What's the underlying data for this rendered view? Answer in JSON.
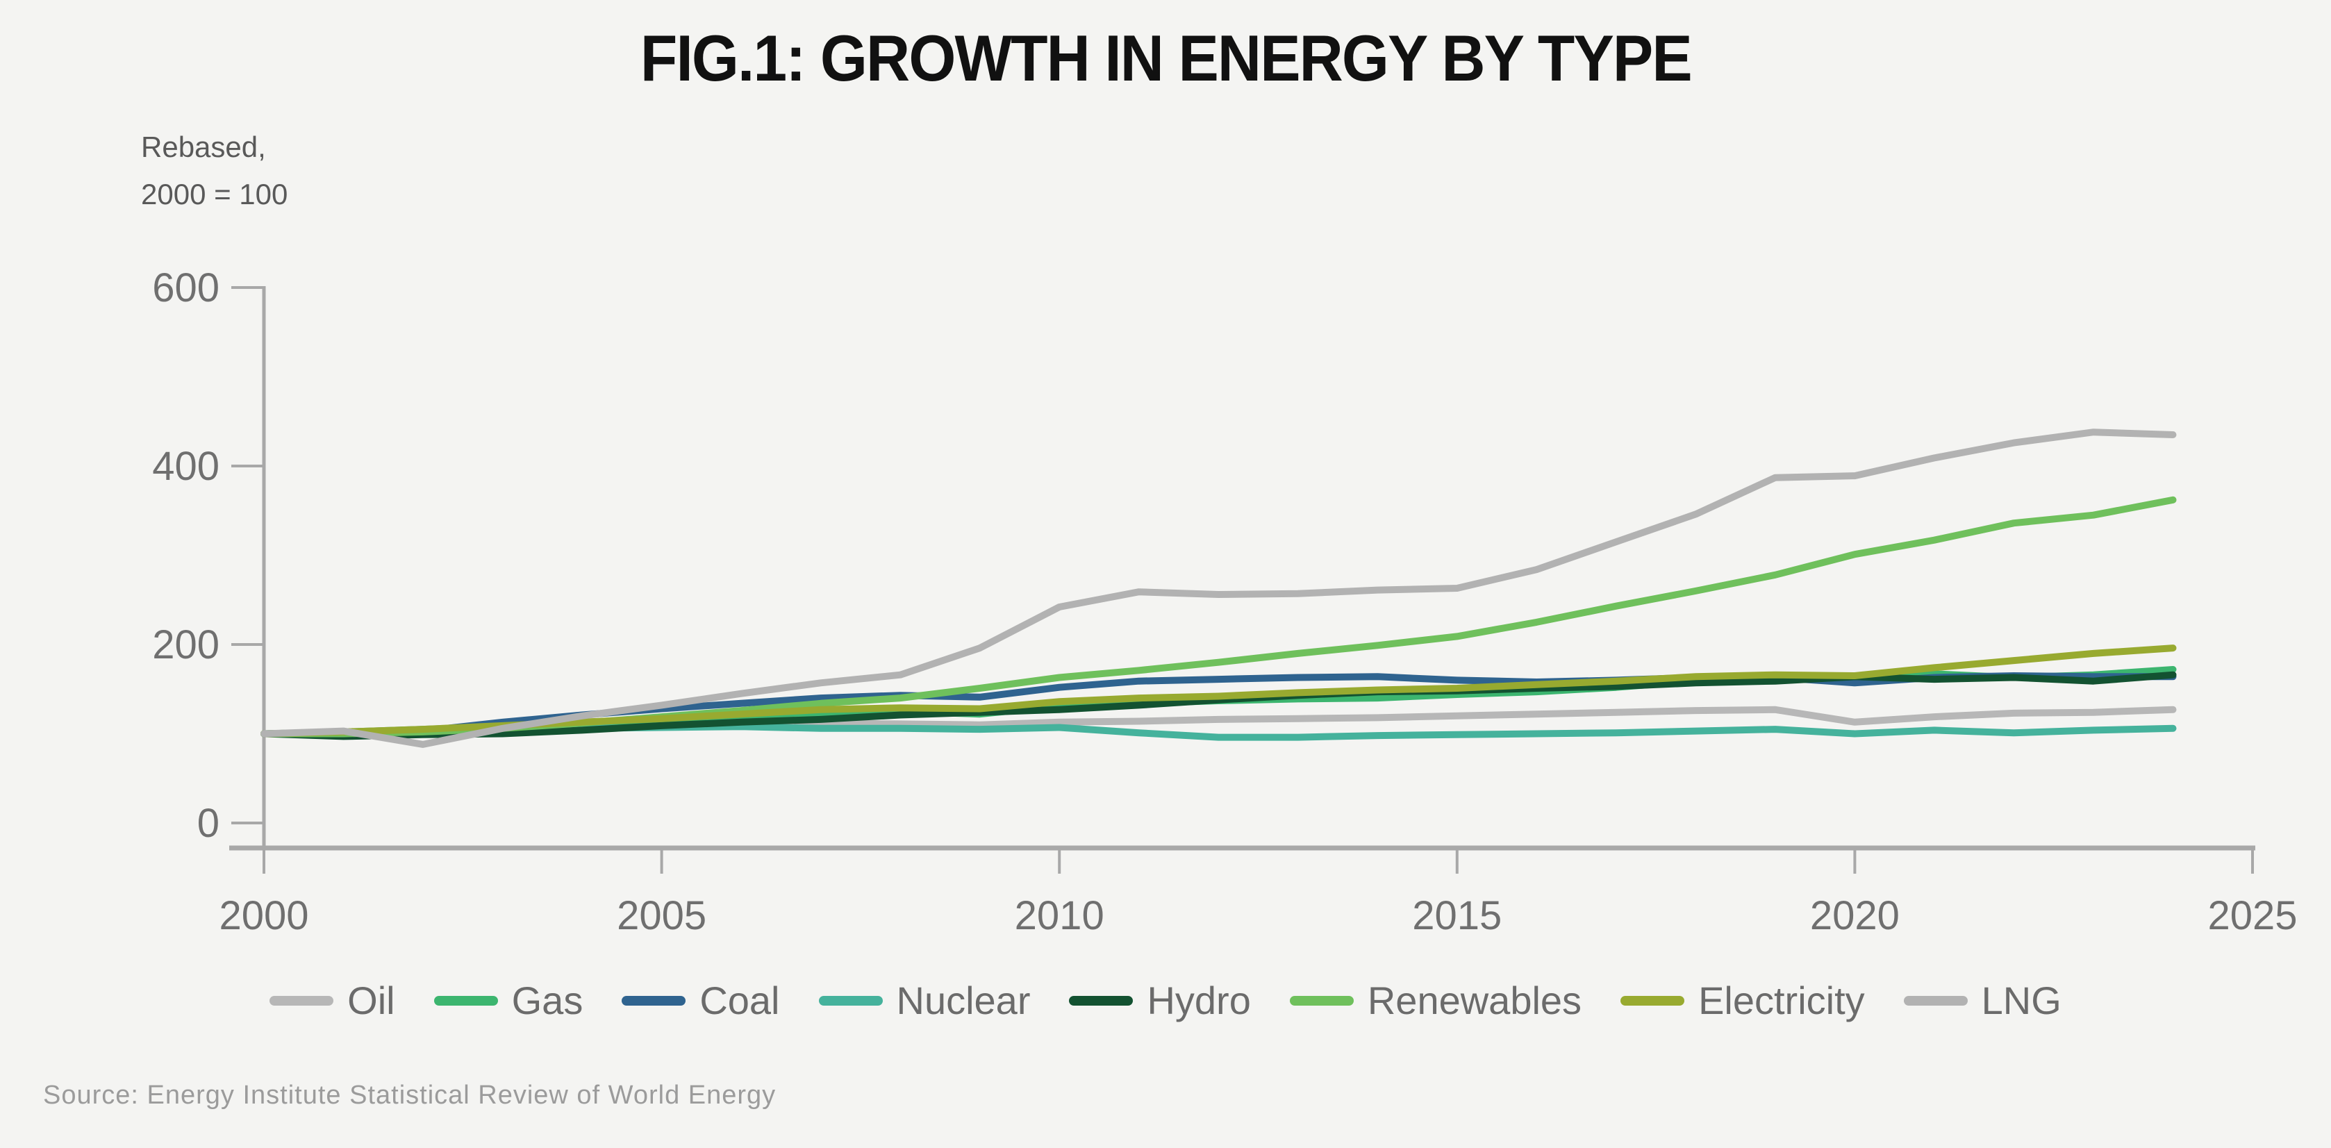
{
  "page": {
    "title": "FIG.1: GROWTH IN ENERGY BY TYPE",
    "y_axis_note_line1": "Rebased,",
    "y_axis_note_line2": "2000 = 100",
    "source": "Source: Energy Institute Statistical Review of World Energy",
    "background_color": "#f4f4f2",
    "axis_color": "#a8a8a8",
    "tick_label_color": "#6f6f6f",
    "legend_text_color": "#6b6b6b"
  },
  "chart_data": {
    "type": "line",
    "title": "FIG.1: GROWTH IN ENERGY BY TYPE",
    "xlabel": "",
    "ylabel": "Rebased, 2000 = 100",
    "xlim": [
      2000,
      2025
    ],
    "ylim": [
      0,
      600
    ],
    "x_ticks": [
      2000,
      2005,
      2010,
      2015,
      2020,
      2025
    ],
    "y_ticks": [
      0,
      200,
      400,
      600
    ],
    "grid": false,
    "legend_position": "bottom",
    "x": [
      2000,
      2001,
      2002,
      2003,
      2004,
      2005,
      2006,
      2007,
      2008,
      2009,
      2010,
      2011,
      2012,
      2013,
      2014,
      2015,
      2016,
      2017,
      2018,
      2019,
      2020,
      2021,
      2022,
      2023,
      2024
    ],
    "series": [
      {
        "name": "Oil",
        "color": "#b7b7b7",
        "values": [
          100,
          101,
          102,
          104,
          107,
          109,
          110,
          112,
          111,
          110,
          113,
          114,
          116,
          117,
          118,
          120,
          122,
          124,
          126,
          127,
          113,
          119,
          123,
          124,
          127
        ]
      },
      {
        "name": "Gas",
        "color": "#3cb56f",
        "values": [
          100,
          102,
          105,
          108,
          112,
          115,
          118,
          122,
          125,
          122,
          131,
          134,
          137,
          139,
          140,
          144,
          147,
          152,
          159,
          163,
          160,
          167,
          163,
          166,
          172
        ]
      },
      {
        "name": "Coal",
        "color": "#2f638f",
        "values": [
          100,
          101,
          103,
          113,
          121,
          128,
          134,
          140,
          143,
          141,
          152,
          159,
          161,
          163,
          164,
          160,
          158,
          160,
          163,
          163,
          157,
          163,
          165,
          164,
          164
        ]
      },
      {
        "name": "Nuclear",
        "color": "#45b29c",
        "values": [
          100,
          102,
          104,
          103,
          106,
          107,
          108,
          106,
          106,
          105,
          107,
          101,
          96,
          96,
          98,
          99,
          100,
          101,
          103,
          105,
          100,
          104,
          101,
          104,
          106
        ]
      },
      {
        "name": "Hydro",
        "color": "#135231",
        "values": [
          100,
          97,
          99,
          100,
          104,
          109,
          113,
          116,
          121,
          124,
          127,
          132,
          138,
          143,
          147,
          148,
          151,
          153,
          157,
          159,
          164,
          161,
          163,
          159,
          166
        ]
      },
      {
        "name": "Renewables",
        "color": "#6fc05c",
        "values": [
          100,
          100,
          102,
          106,
          112,
          119,
          126,
          134,
          140,
          151,
          163,
          171,
          180,
          190,
          199,
          209,
          225,
          243,
          260,
          278,
          301,
          317,
          336,
          345,
          362
        ]
      },
      {
        "name": "Electricity",
        "color": "#98aa30",
        "values": [
          100,
          102,
          105,
          109,
          113,
          117,
          122,
          127,
          129,
          128,
          136,
          140,
          142,
          146,
          149,
          151,
          155,
          159,
          164,
          166,
          165,
          174,
          182,
          190,
          196
        ]
      },
      {
        "name": "LNG",
        "color": "#b2b2b2",
        "values": [
          100,
          103,
          88,
          106,
          120,
          132,
          145,
          157,
          166,
          196,
          242,
          259,
          256,
          257,
          261,
          263,
          284,
          315,
          346,
          387,
          389,
          409,
          426,
          438,
          435
        ]
      }
    ]
  }
}
